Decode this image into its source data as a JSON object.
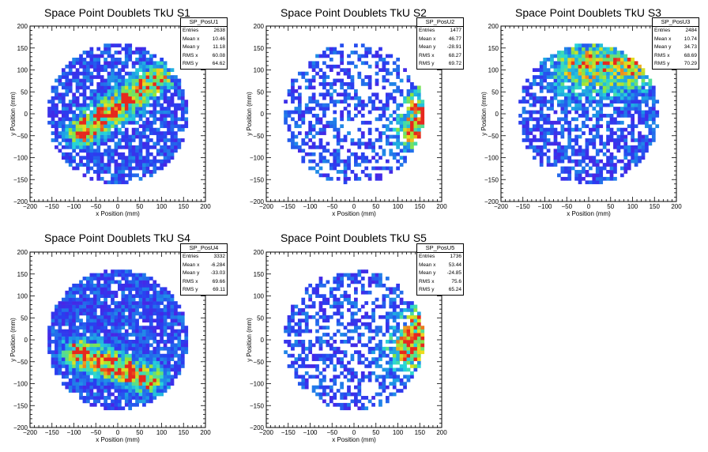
{
  "chart_data": [
    {
      "type": "heatmap",
      "title": "Space Point Doublets TkU S1",
      "xlabel": "x Position (mm)",
      "ylabel": "y Position (mm)",
      "xlim": [
        -200,
        200
      ],
      "ylim": [
        -200,
        200
      ],
      "x_ticks": [
        "−200",
        "−150",
        "−100",
        "−50",
        "0",
        "50",
        "100",
        "150",
        "200"
      ],
      "y_ticks": [
        "−200",
        "−150",
        "−100",
        "−50",
        "0",
        "50",
        "100",
        "150",
        "200"
      ],
      "stats": {
        "name": "SP_PosU1",
        "entries": 2638,
        "mean_x": 10.46,
        "mean_y": 11.18,
        "rms_x": 60.08,
        "rms_y": 64.62
      },
      "pattern": {
        "fill": 0.75,
        "seed": 11,
        "band": {
          "kind": "diagonal",
          "x0": -80,
          "y0": -40,
          "x1": 90,
          "y1": 80,
          "width": 22,
          "peak": 0.85
        }
      }
    },
    {
      "type": "heatmap",
      "title": "Space Point Doublets TkU S2",
      "xlabel": "x Position (mm)",
      "ylabel": "y Position (mm)",
      "xlim": [
        -200,
        200
      ],
      "ylim": [
        -200,
        200
      ],
      "x_ticks": [
        "−200",
        "−150",
        "−100",
        "−50",
        "0",
        "50",
        "100",
        "150",
        "200"
      ],
      "y_ticks": [
        "−200",
        "−150",
        "−100",
        "−50",
        "0",
        "50",
        "100",
        "150",
        "200"
      ],
      "stats": {
        "name": "SP_PosU2",
        "entries": 1477,
        "mean_x": 46.77,
        "mean_y": -28.91,
        "rms_x": 68.27,
        "rms_y": 69.72
      },
      "pattern": {
        "fill": 0.45,
        "seed": 23,
        "band": {
          "kind": "edge",
          "x0": 140,
          "y0": -40,
          "x1": 160,
          "y1": 20,
          "width": 30,
          "peak": 0.75
        }
      }
    },
    {
      "type": "heatmap",
      "title": "Space Point Doublets TkU S3",
      "xlabel": "x Position (mm)",
      "ylabel": "y Position (mm)",
      "xlim": [
        -200,
        200
      ],
      "ylim": [
        -200,
        200
      ],
      "x_ticks": [
        "−200",
        "−150",
        "−100",
        "−50",
        "0",
        "50",
        "100",
        "150",
        "200"
      ],
      "y_ticks": [
        "−200",
        "−150",
        "−100",
        "−50",
        "0",
        "50",
        "100",
        "150",
        "200"
      ],
      "stats": {
        "name": "SP_PosU3",
        "entries": 2484,
        "mean_x": 10.74,
        "mean_y": 34.73,
        "rms_x": 68.69,
        "rms_y": 70.29
      },
      "pattern": {
        "fill": 0.65,
        "seed": 37,
        "band": {
          "kind": "upper",
          "x0": -20,
          "y0": 110,
          "x1": 90,
          "y1": 110,
          "width": 45,
          "peak": 0.6
        }
      }
    },
    {
      "type": "heatmap",
      "title": "Space Point Doublets TkU S4",
      "xlabel": "x Position (mm)",
      "ylabel": "y Position (mm)",
      "xlim": [
        -200,
        200
      ],
      "ylim": [
        -200,
        200
      ],
      "x_ticks": [
        "−200",
        "−150",
        "−100",
        "−50",
        "0",
        "50",
        "100",
        "150",
        "200"
      ],
      "y_ticks": [
        "−200",
        "−150",
        "−100",
        "−50",
        "0",
        "50",
        "100",
        "150",
        "200"
      ],
      "stats": {
        "name": "SP_PosU4",
        "entries": 3332,
        "mean_x": -6.284,
        "mean_y": -33.03,
        "rms_x": 69.66,
        "rms_y": 69.11
      },
      "pattern": {
        "fill": 0.88,
        "seed": 41,
        "band": {
          "kind": "diagonal",
          "x0": -90,
          "y0": -30,
          "x1": 70,
          "y1": -90,
          "width": 22,
          "peak": 0.85
        }
      }
    },
    {
      "type": "heatmap",
      "title": "Space Point Doublets TkU S5",
      "xlabel": "x Position (mm)",
      "ylabel": "y Position (mm)",
      "xlim": [
        -200,
        200
      ],
      "ylim": [
        -200,
        200
      ],
      "x_ticks": [
        "−200",
        "−150",
        "−100",
        "−50",
        "0",
        "50",
        "100",
        "150",
        "200"
      ],
      "y_ticks": [
        "−200",
        "−150",
        "−100",
        "−50",
        "0",
        "50",
        "100",
        "150",
        "200"
      ],
      "stats": {
        "name": "SP_PosU5",
        "entries": 1736,
        "mean_x": 53.44,
        "mean_y": -24.85,
        "rms_x": 75.6,
        "rms_y": 65.24
      },
      "pattern": {
        "fill": 0.5,
        "seed": 53,
        "band": {
          "kind": "edge",
          "x0": 130,
          "y0": -20,
          "x1": 160,
          "y1": 30,
          "width": 35,
          "peak": 0.8
        }
      }
    }
  ],
  "stat_labels": {
    "entries": "Entries",
    "mean_x": "Mean x",
    "mean_y": "Mean y",
    "rms_x": "RMS x",
    "rms_y": "RMS y"
  },
  "colors": {
    "frame": "#000000",
    "background": "#ffffff"
  }
}
